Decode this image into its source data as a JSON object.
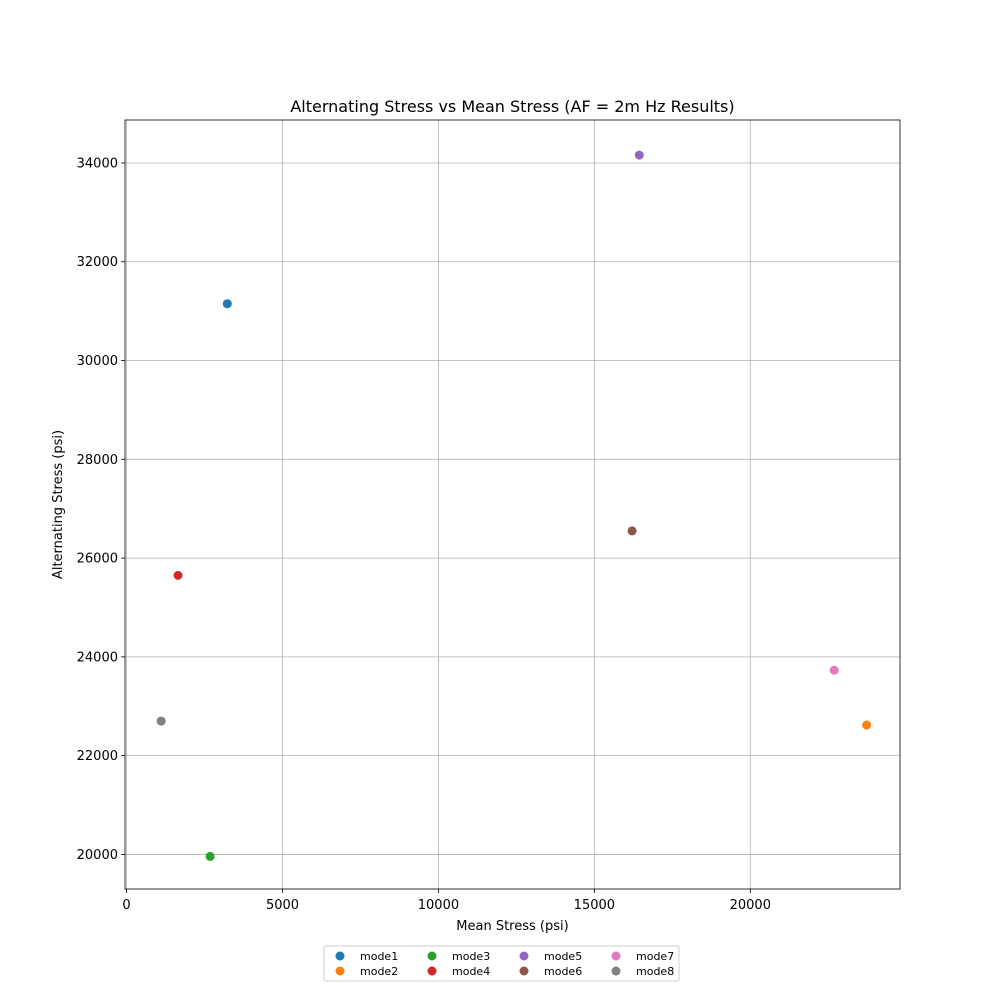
{
  "chart_data": {
    "type": "scatter",
    "title": "Alternating Stress vs Mean Stress (AF = 2m Hz Results)",
    "xlabel": "Mean Stress (psi)",
    "ylabel": "Alternating Stress (psi)",
    "xlim": [
      -50,
      24800
    ],
    "ylim": [
      19300,
      34870
    ],
    "xticks": [
      0,
      5000,
      10000,
      15000,
      20000
    ],
    "yticks": [
      20000,
      22000,
      24000,
      26000,
      28000,
      30000,
      32000,
      34000
    ],
    "grid": true,
    "legend_position": "bottom-center",
    "legend_columns": 4,
    "series": [
      {
        "name": "mode1",
        "color": "#1f77b4",
        "x": 3230,
        "y": 31150
      },
      {
        "name": "mode2",
        "color": "#ff7f0e",
        "x": 23730,
        "y": 22620
      },
      {
        "name": "mode3",
        "color": "#2ca02c",
        "x": 2680,
        "y": 19960
      },
      {
        "name": "mode4",
        "color": "#d62728",
        "x": 1650,
        "y": 25650
      },
      {
        "name": "mode5",
        "color": "#9467bd",
        "x": 16440,
        "y": 34160
      },
      {
        "name": "mode6",
        "color": "#8c564b",
        "x": 16210,
        "y": 26550
      },
      {
        "name": "mode7",
        "color": "#e377c2",
        "x": 22690,
        "y": 23730
      },
      {
        "name": "mode8",
        "color": "#7f7f7f",
        "x": 1110,
        "y": 22700
      }
    ]
  }
}
